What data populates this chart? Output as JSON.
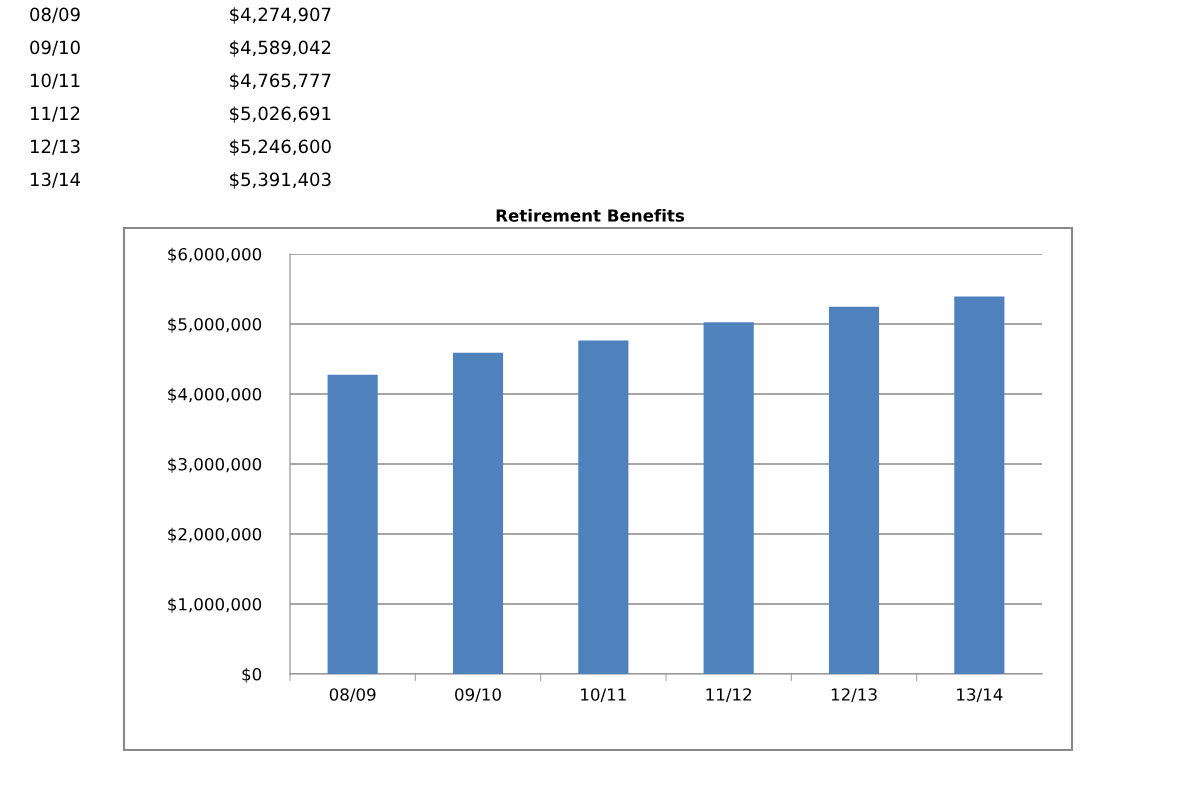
{
  "chart_data": {
    "type": "bar",
    "title": "Retirement Benefits",
    "categories": [
      "08/09",
      "09/10",
      "10/11",
      "11/12",
      "12/13",
      "13/14"
    ],
    "values": [
      4274907,
      4589042,
      4765777,
      5026691,
      5246600,
      5391403
    ],
    "annotations": [
      "08/09",
      "$4,274,907",
      "09/10",
      "$4,589,042",
      "10/11",
      "$4,765,777",
      "11/12",
      "$5,026,691",
      "12/13",
      "$5,246,600",
      "13/14",
      "$5,391,403"
    ],
    "color": "#4f81bd",
    "ylim": [
      0,
      6000000
    ],
    "yticks": [
      {
        "value": 0,
        "label": "$0"
      },
      {
        "value": 1000000,
        "label": "$1,000,000"
      },
      {
        "value": 2000000,
        "label": "$2,000,000"
      },
      {
        "value": 3000000,
        "label": "$3,000,000"
      },
      {
        "value": 4000000,
        "label": "$4,000,000"
      },
      {
        "value": 5000000,
        "label": "$5,000,000"
      },
      {
        "value": 6000000,
        "label": "$6,000,000"
      }
    ],
    "grid": "y",
    "legend": false
  }
}
